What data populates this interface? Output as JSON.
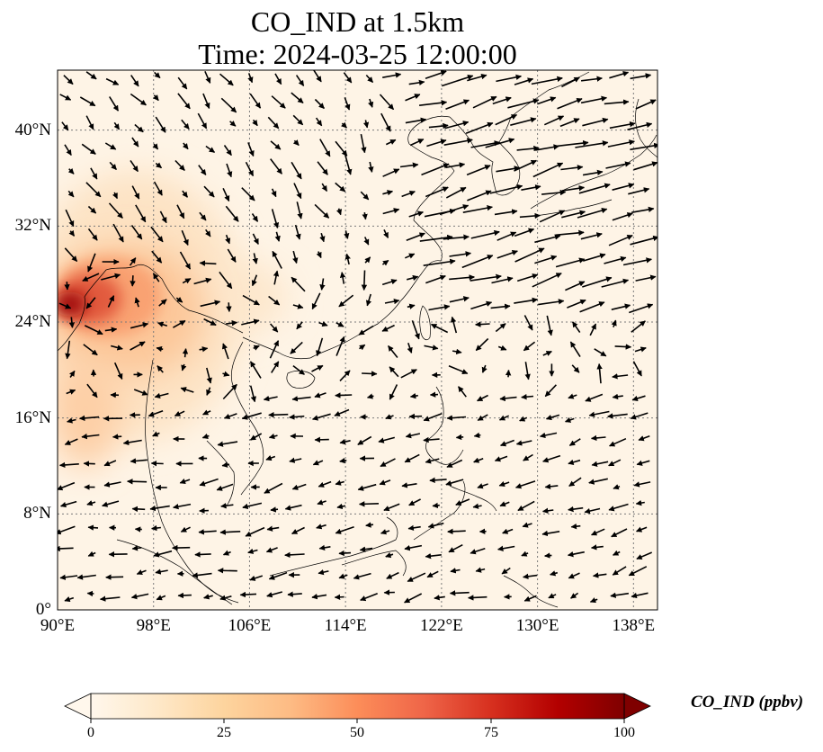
{
  "title": {
    "line1": "CO_IND at 1.5km",
    "line2": "Time: 2024-03-25 12:00:00"
  },
  "map": {
    "extent": {
      "lon_min": 90,
      "lon_max": 140,
      "lat_min": 0,
      "lat_max": 45
    },
    "lat_ticks": [
      {
        "value": 0,
        "label": "0°"
      },
      {
        "value": 8,
        "label": "8°N"
      },
      {
        "value": 16,
        "label": "16°N"
      },
      {
        "value": 24,
        "label": "24°N"
      },
      {
        "value": 32,
        "label": "32°N"
      },
      {
        "value": 40,
        "label": "40°N"
      }
    ],
    "lon_ticks": [
      {
        "value": 90,
        "label": "90°E"
      },
      {
        "value": 98,
        "label": "98°E"
      },
      {
        "value": 106,
        "label": "106°E"
      },
      {
        "value": 114,
        "label": "114°E"
      },
      {
        "value": 122,
        "label": "122°E"
      },
      {
        "value": 130,
        "label": "130°E"
      },
      {
        "value": 138,
        "label": "138°E"
      }
    ],
    "gridlines": true,
    "field_color_ramp": "OrRd",
    "high_concentration_region": "Myanmar / Yunnan / Sichuan border area, peak at approx 90–93°E, 24–27°N",
    "wind_vectors": true
  },
  "colorbar": {
    "label": "CO_IND (ppbv)",
    "min": 0,
    "max": 100,
    "extend": "both",
    "ticks": [
      "0",
      "25",
      "50",
      "75",
      "100"
    ],
    "colors": [
      "#fff7ec",
      "#fee8c8",
      "#fdd49e",
      "#fdbb84",
      "#fc8d59",
      "#ef6548",
      "#d7301f",
      "#b30000",
      "#7f0000"
    ]
  }
}
